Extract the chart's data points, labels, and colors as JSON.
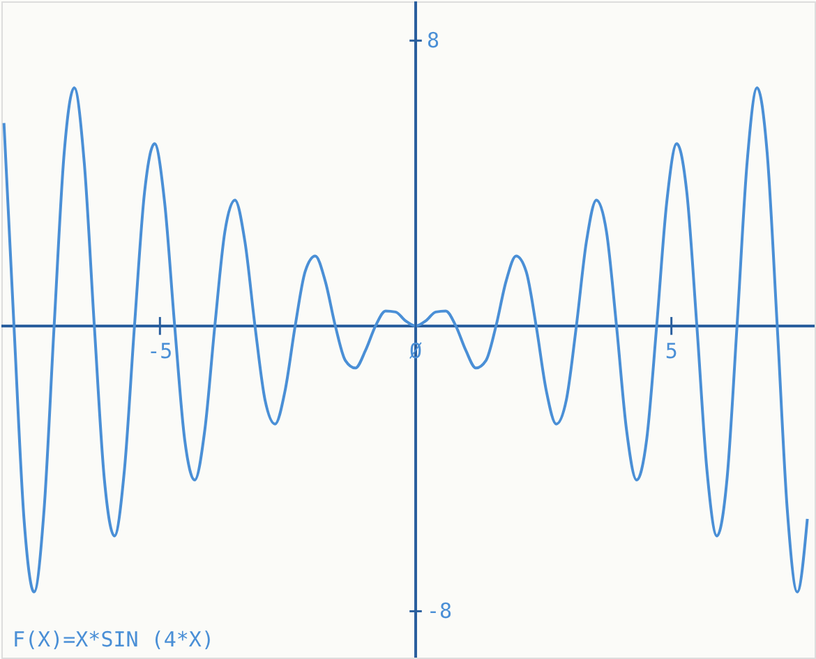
{
  "chart_data": {
    "type": "line",
    "x": [
      -8.05,
      -7.854,
      -7.658,
      -7.461,
      -7.265,
      -7.069,
      -6.872,
      -6.676,
      -6.48,
      -6.283,
      -6.087,
      -5.89,
      -5.694,
      -5.498,
      -5.301,
      -5.105,
      -4.909,
      -4.712,
      -4.516,
      -4.32,
      -4.123,
      -3.927,
      -3.731,
      -3.534,
      -3.338,
      -3.142,
      -2.945,
      -2.749,
      -2.553,
      -2.356,
      -2.16,
      -1.963,
      -1.767,
      -1.571,
      -1.374,
      -1.178,
      -0.982,
      -0.785,
      -0.589,
      -0.393,
      -0.196,
      0,
      0.196,
      0.393,
      0.589,
      0.785,
      0.982,
      1.178,
      1.374,
      1.571,
      1.767,
      1.963,
      2.16,
      2.356,
      2.553,
      2.749,
      2.945,
      3.142,
      3.338,
      3.534,
      3.731,
      3.927,
      4.123,
      4.32,
      4.516,
      4.712,
      4.909,
      5.105,
      5.301,
      5.498,
      5.694,
      5.89,
      6.087,
      6.283,
      6.48,
      6.676,
      6.872,
      7.069,
      7.265,
      7.461,
      7.658
    ],
    "series": [
      {
        "color": "#4a8fd6",
        "values": [
          5.69,
          0,
          -5.41,
          -7.46,
          -5.14,
          0,
          4.86,
          6.68,
          4.58,
          0,
          -4.3,
          -5.89,
          -4.03,
          0,
          3.75,
          5.11,
          3.47,
          0,
          -3.19,
          -4.32,
          -2.92,
          0,
          2.64,
          3.53,
          2.36,
          0,
          -2.08,
          -2.75,
          -1.81,
          0,
          1.53,
          1.96,
          1.25,
          0,
          -0.97,
          -1.18,
          -0.69,
          0,
          0.42,
          0.39,
          0.14,
          0,
          0.14,
          0.39,
          0.42,
          0,
          -0.69,
          -1.18,
          -0.97,
          0,
          1.25,
          1.96,
          1.53,
          0,
          -1.81,
          -2.75,
          -2.08,
          0,
          2.36,
          3.53,
          2.64,
          0,
          -2.92,
          -4.32,
          -3.19,
          0,
          3.47,
          5.11,
          3.75,
          0,
          -4.03,
          -5.89,
          -4.3,
          0,
          4.58,
          6.68,
          4.86,
          0,
          -5.14,
          -7.46,
          -5.41
        ]
      }
    ],
    "xlim": [
      -8.1,
      7.8
    ],
    "ylim": [
      -9.3,
      9.1
    ],
    "xticks": [
      -5,
      {
        "value": 0,
        "label": "Ø"
      },
      5
    ],
    "yticks": [
      8,
      -8
    ],
    "marker": "none",
    "line_style": "solid",
    "annotations": [
      "F(X)=X*SIN (4*X)"
    ]
  }
}
